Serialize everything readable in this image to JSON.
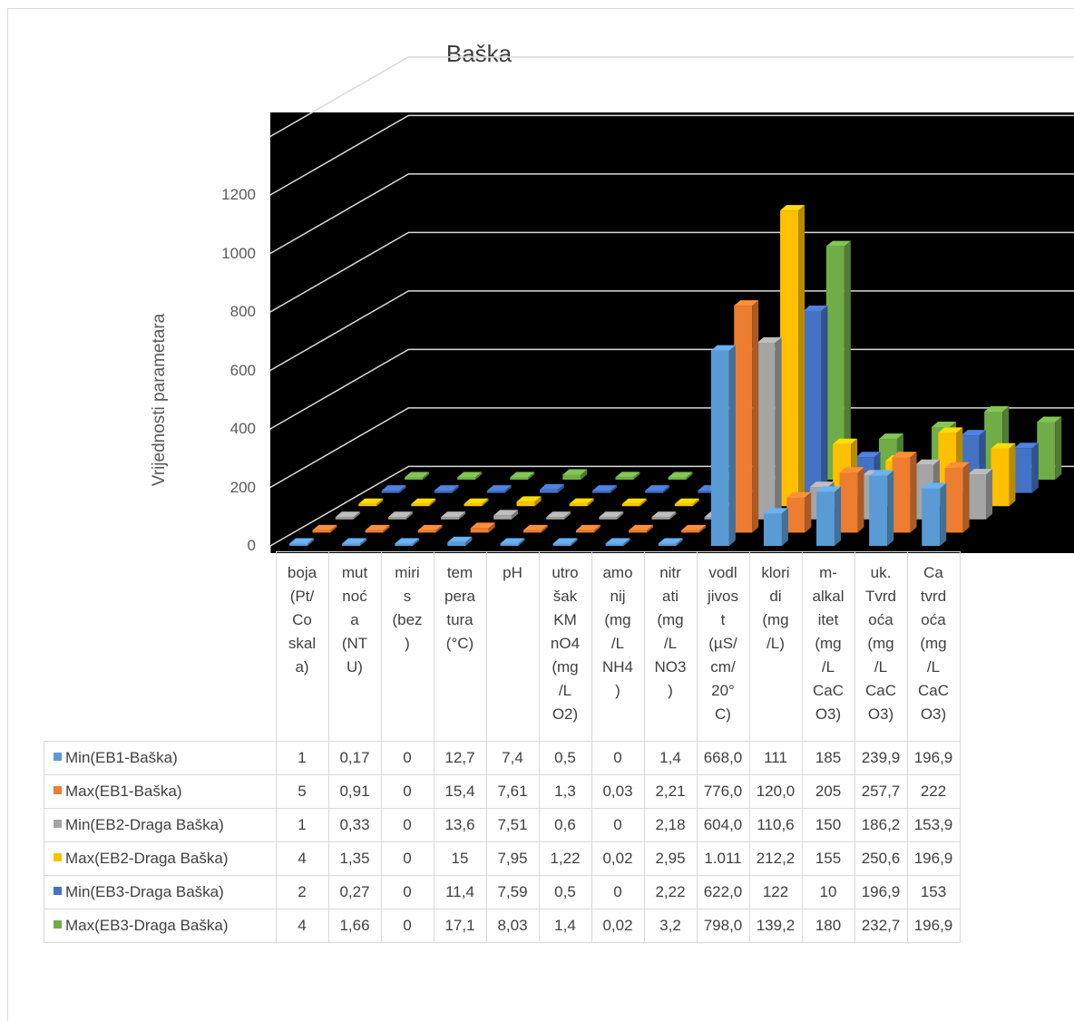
{
  "chart_data": {
    "type": "bar",
    "subtype": "3d-column",
    "title": "Baška",
    "ylabel": "Vrijednosti parametara",
    "ylim": [
      0,
      1400
    ],
    "yticks": [
      "0",
      "200",
      "400",
      "600",
      "800",
      "1000",
      "1200"
    ],
    "grid": true,
    "plot_background": "#000000",
    "legend_placement": "data-table-left",
    "categories": [
      "boja\n(Pt/\nCo\nskal\na)",
      "mut\nnoć\na\n(NT\nU)",
      "miri\ns\n(bez\n)",
      "tem\npera\ntura\n(°C)",
      "pH",
      "utro\nšak\nKM\nnO4\n(mg\n/L\nO2)",
      "amo\nnij\n(mg\n/L\nNH4\n)",
      "nitr\nati\n(mg\n/L\nNO3\n)",
      "vodl\njivos\nt\n(µS/\ncm/\n20°\nC)",
      "klori\ndi\n(mg\n/L)",
      "m-\nalkal\nitet\n(mg\n/L\nCaC\nO3)",
      "uk.\nTvrd\noća\n(mg\n/L\nCaC\nO3)",
      "Ca\ntvrd\noća\n(mg\n/L\nCaC\nO3)"
    ],
    "series": [
      {
        "name": "Min(EB1-Baška)",
        "color": "#5b9bd5",
        "values": [
          1,
          0.17,
          0,
          12.7,
          7.4,
          0.5,
          0,
          1.4,
          668.0,
          111,
          185,
          239.9,
          196.9
        ],
        "labels": [
          "1",
          "0,17",
          "0",
          "12,7",
          "7,4",
          "0,5",
          "0",
          "1,4",
          "668,0",
          "111",
          "185",
          "239,9",
          "196,9"
        ]
      },
      {
        "name": "Max(EB1-Baška)",
        "color": "#ed7d31",
        "values": [
          5,
          0.91,
          0,
          15.4,
          7.61,
          1.3,
          0.03,
          2.21,
          776.0,
          120.0,
          205,
          257.7,
          222
        ],
        "labels": [
          "5",
          "0,91",
          "0",
          "15,4",
          "7,61",
          "1,3",
          "0,03",
          "2,21",
          "776,0",
          "120,0",
          "205",
          "257,7",
          "222"
        ]
      },
      {
        "name": "Min(EB2-Draga Baška)",
        "color": "#a5a5a5",
        "values": [
          1,
          0.33,
          0,
          13.6,
          7.51,
          0.6,
          0,
          2.18,
          604.0,
          110.6,
          150,
          186.2,
          153.9
        ],
        "labels": [
          "1",
          "0,33",
          "0",
          "13,6",
          "7,51",
          "0,6",
          "0",
          "2,18",
          "604,0",
          "110,6",
          "150",
          "186,2",
          "153,9"
        ]
      },
      {
        "name": "Max(EB2-Draga Baška)",
        "color": "#ffc000",
        "values": [
          4,
          1.35,
          0,
          15,
          7.95,
          1.22,
          0.02,
          2.95,
          1011,
          212.2,
          155,
          250.6,
          196.9
        ],
        "labels": [
          "4",
          "1,35",
          "0",
          "15",
          "7,95",
          "1,22",
          "0,02",
          "2,95",
          "1.011",
          "212,2",
          "155",
          "250,6",
          "196,9"
        ]
      },
      {
        "name": "Min(EB3-Draga Baška)",
        "color": "#4472c4",
        "values": [
          2,
          0.27,
          0,
          11.4,
          7.59,
          0.5,
          0,
          2.22,
          622.0,
          122,
          10,
          196.9,
          153
        ],
        "labels": [
          "2",
          "0,27",
          "0",
          "11,4",
          "7,59",
          "0,5",
          "0",
          "2,22",
          "622,0",
          "122",
          "10",
          "196,9",
          "153"
        ]
      },
      {
        "name": "Max(EB3-Draga Baška)",
        "color": "#70ad47",
        "values": [
          4,
          1.66,
          0,
          17.1,
          8.03,
          1.4,
          0.02,
          3.2,
          798.0,
          139.2,
          180,
          232.7,
          196.9
        ],
        "labels": [
          "4",
          "1,66",
          "0",
          "17,1",
          "8,03",
          "1,4",
          "0,02",
          "3,2",
          "798,0",
          "139,2",
          "180",
          "232,7",
          "196,9"
        ]
      }
    ]
  }
}
